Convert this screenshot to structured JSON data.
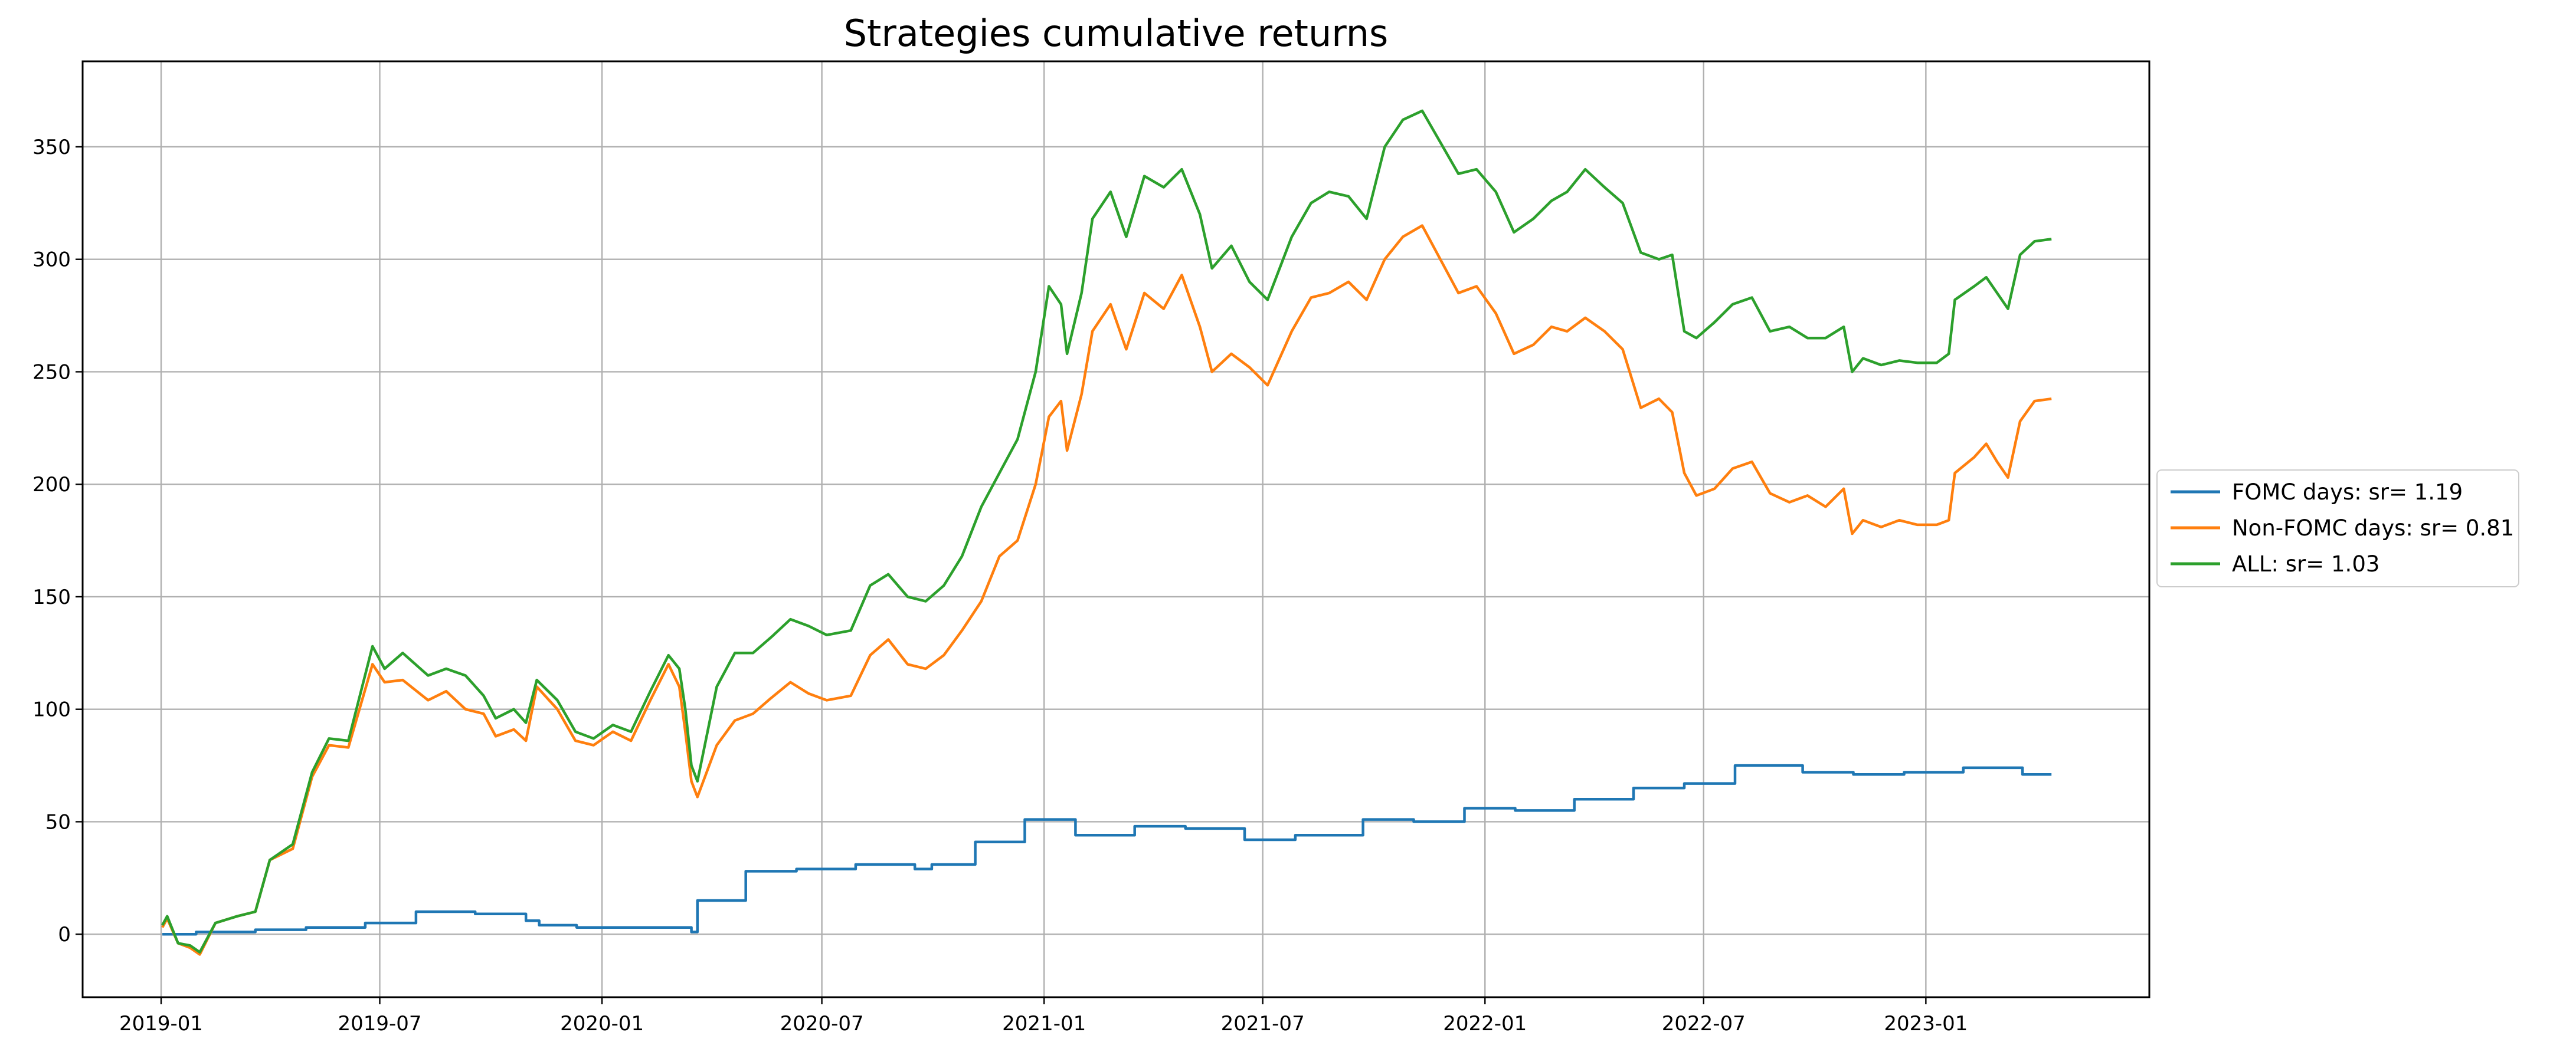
{
  "chart_data": {
    "type": "line",
    "title": "Strategies cumulative returns",
    "xlabel": "",
    "ylabel": "",
    "x_range": [
      "2018-10-28",
      "2023-07-05"
    ],
    "ylim": [
      -28,
      388
    ],
    "xticks": [
      {
        "date": "2019-01-01",
        "label": "2019-01"
      },
      {
        "date": "2019-07-01",
        "label": "2019-07"
      },
      {
        "date": "2020-01-01",
        "label": "2020-01"
      },
      {
        "date": "2020-07-01",
        "label": "2020-07"
      },
      {
        "date": "2021-01-01",
        "label": "2021-01"
      },
      {
        "date": "2021-07-01",
        "label": "2021-07"
      },
      {
        "date": "2022-01-01",
        "label": "2022-01"
      },
      {
        "date": "2022-07-01",
        "label": "2022-07"
      },
      {
        "date": "2023-01-01",
        "label": "2023-01"
      }
    ],
    "yticks": [
      0,
      50,
      100,
      150,
      200,
      250,
      300,
      350
    ],
    "grid": true,
    "legend_position": "outside-right",
    "series": [
      {
        "name": "FOMC days: sr= 1.19",
        "color": "#1f77b4",
        "step": true,
        "points": [
          [
            "2019-01-02",
            0
          ],
          [
            "2019-01-30",
            1
          ],
          [
            "2019-03-20",
            2
          ],
          [
            "2019-05-01",
            3
          ],
          [
            "2019-06-19",
            5
          ],
          [
            "2019-07-31",
            10
          ],
          [
            "2019-09-18",
            9
          ],
          [
            "2019-10-30",
            6
          ],
          [
            "2019-11-10",
            4
          ],
          [
            "2019-12-11",
            3
          ],
          [
            "2020-01-29",
            3
          ],
          [
            "2020-03-03",
            3
          ],
          [
            "2020-03-15",
            1
          ],
          [
            "2020-03-20",
            15
          ],
          [
            "2020-04-29",
            28
          ],
          [
            "2020-06-10",
            29
          ],
          [
            "2020-07-29",
            31
          ],
          [
            "2020-09-16",
            29
          ],
          [
            "2020-09-30",
            31
          ],
          [
            "2020-11-05",
            41
          ],
          [
            "2020-12-16",
            51
          ],
          [
            "2021-01-27",
            44
          ],
          [
            "2021-03-17",
            48
          ],
          [
            "2021-04-28",
            47
          ],
          [
            "2021-06-16",
            42
          ],
          [
            "2021-07-28",
            44
          ],
          [
            "2021-09-22",
            51
          ],
          [
            "2021-11-03",
            50
          ],
          [
            "2021-12-15",
            56
          ],
          [
            "2022-01-26",
            55
          ],
          [
            "2022-03-16",
            60
          ],
          [
            "2022-05-04",
            65
          ],
          [
            "2022-06-15",
            67
          ],
          [
            "2022-07-27",
            75
          ],
          [
            "2022-09-21",
            72
          ],
          [
            "2022-11-02",
            71
          ],
          [
            "2022-12-14",
            72
          ],
          [
            "2023-02-01",
            74
          ],
          [
            "2023-03-22",
            71
          ],
          [
            "2023-04-15",
            71
          ]
        ]
      },
      {
        "name": "Non-FOMC days: sr= 0.81",
        "color": "#ff7f0e",
        "points": [
          [
            "2019-01-02",
            3
          ],
          [
            "2019-01-06",
            7
          ],
          [
            "2019-01-15",
            -4
          ],
          [
            "2019-01-25",
            -6
          ],
          [
            "2019-02-02",
            -9
          ],
          [
            "2019-02-15",
            5
          ],
          [
            "2019-03-05",
            8
          ],
          [
            "2019-03-20",
            10
          ],
          [
            "2019-04-01",
            33
          ],
          [
            "2019-04-20",
            38
          ],
          [
            "2019-05-06",
            70
          ],
          [
            "2019-05-20",
            84
          ],
          [
            "2019-06-05",
            83
          ],
          [
            "2019-06-25",
            120
          ],
          [
            "2019-07-05",
            112
          ],
          [
            "2019-07-20",
            113
          ],
          [
            "2019-08-10",
            104
          ],
          [
            "2019-08-25",
            108
          ],
          [
            "2019-09-10",
            100
          ],
          [
            "2019-09-25",
            98
          ],
          [
            "2019-10-05",
            88
          ],
          [
            "2019-10-20",
            91
          ],
          [
            "2019-10-30",
            86
          ],
          [
            "2019-11-08",
            110
          ],
          [
            "2019-11-25",
            100
          ],
          [
            "2019-12-10",
            86
          ],
          [
            "2019-12-25",
            84
          ],
          [
            "2020-01-10",
            90
          ],
          [
            "2020-01-25",
            86
          ],
          [
            "2020-02-10",
            104
          ],
          [
            "2020-02-25",
            120
          ],
          [
            "2020-03-05",
            110
          ],
          [
            "2020-03-10",
            90
          ],
          [
            "2020-03-15",
            68
          ],
          [
            "2020-03-20",
            61
          ],
          [
            "2020-04-05",
            84
          ],
          [
            "2020-04-20",
            95
          ],
          [
            "2020-05-05",
            98
          ],
          [
            "2020-05-20",
            105
          ],
          [
            "2020-06-05",
            112
          ],
          [
            "2020-06-20",
            107
          ],
          [
            "2020-07-05",
            104
          ],
          [
            "2020-07-25",
            106
          ],
          [
            "2020-08-10",
            124
          ],
          [
            "2020-08-25",
            131
          ],
          [
            "2020-09-10",
            120
          ],
          [
            "2020-09-25",
            118
          ],
          [
            "2020-10-10",
            124
          ],
          [
            "2020-10-25",
            135
          ],
          [
            "2020-11-10",
            148
          ],
          [
            "2020-11-25",
            168
          ],
          [
            "2020-12-10",
            175
          ],
          [
            "2020-12-25",
            200
          ],
          [
            "2021-01-05",
            230
          ],
          [
            "2021-01-15",
            237
          ],
          [
            "2021-01-20",
            215
          ],
          [
            "2021-02-01",
            240
          ],
          [
            "2021-02-10",
            268
          ],
          [
            "2021-02-25",
            280
          ],
          [
            "2021-03-10",
            260
          ],
          [
            "2021-03-25",
            285
          ],
          [
            "2021-04-10",
            278
          ],
          [
            "2021-04-25",
            293
          ],
          [
            "2021-05-10",
            270
          ],
          [
            "2021-05-20",
            250
          ],
          [
            "2021-06-05",
            258
          ],
          [
            "2021-06-20",
            252
          ],
          [
            "2021-07-05",
            244
          ],
          [
            "2021-07-25",
            268
          ],
          [
            "2021-08-10",
            283
          ],
          [
            "2021-08-25",
            285
          ],
          [
            "2021-09-10",
            290
          ],
          [
            "2021-09-25",
            282
          ],
          [
            "2021-10-10",
            300
          ],
          [
            "2021-10-25",
            310
          ],
          [
            "2021-11-10",
            315
          ],
          [
            "2021-11-25",
            300
          ],
          [
            "2021-12-10",
            285
          ],
          [
            "2021-12-25",
            288
          ],
          [
            "2022-01-10",
            276
          ],
          [
            "2022-01-25",
            258
          ],
          [
            "2022-02-10",
            262
          ],
          [
            "2022-02-25",
            270
          ],
          [
            "2022-03-10",
            268
          ],
          [
            "2022-03-25",
            274
          ],
          [
            "2022-04-10",
            268
          ],
          [
            "2022-04-25",
            260
          ],
          [
            "2022-05-10",
            234
          ],
          [
            "2022-05-25",
            238
          ],
          [
            "2022-06-05",
            232
          ],
          [
            "2022-06-15",
            205
          ],
          [
            "2022-06-25",
            195
          ],
          [
            "2022-07-10",
            198
          ],
          [
            "2022-07-25",
            207
          ],
          [
            "2022-08-10",
            210
          ],
          [
            "2022-08-25",
            196
          ],
          [
            "2022-09-10",
            192
          ],
          [
            "2022-09-25",
            195
          ],
          [
            "2022-10-10",
            190
          ],
          [
            "2022-10-25",
            198
          ],
          [
            "2022-11-01",
            178
          ],
          [
            "2022-11-10",
            184
          ],
          [
            "2022-11-25",
            181
          ],
          [
            "2022-12-10",
            184
          ],
          [
            "2022-12-25",
            182
          ],
          [
            "2023-01-10",
            182
          ],
          [
            "2023-01-20",
            184
          ],
          [
            "2023-01-25",
            205
          ],
          [
            "2023-02-10",
            212
          ],
          [
            "2023-02-20",
            218
          ],
          [
            "2023-03-01",
            210
          ],
          [
            "2023-03-10",
            203
          ],
          [
            "2023-03-20",
            228
          ],
          [
            "2023-04-01",
            237
          ],
          [
            "2023-04-15",
            238
          ]
        ]
      },
      {
        "name": "ALL: sr= 1.03",
        "color": "#2ca02c",
        "points": [
          [
            "2019-01-02",
            4
          ],
          [
            "2019-01-06",
            8
          ],
          [
            "2019-01-15",
            -4
          ],
          [
            "2019-01-25",
            -5
          ],
          [
            "2019-02-02",
            -8
          ],
          [
            "2019-02-15",
            5
          ],
          [
            "2019-03-05",
            8
          ],
          [
            "2019-03-20",
            10
          ],
          [
            "2019-04-01",
            33
          ],
          [
            "2019-04-20",
            40
          ],
          [
            "2019-05-06",
            72
          ],
          [
            "2019-05-20",
            87
          ],
          [
            "2019-06-05",
            86
          ],
          [
            "2019-06-25",
            128
          ],
          [
            "2019-07-05",
            118
          ],
          [
            "2019-07-20",
            125
          ],
          [
            "2019-08-10",
            115
          ],
          [
            "2019-08-25",
            118
          ],
          [
            "2019-09-10",
            115
          ],
          [
            "2019-09-25",
            106
          ],
          [
            "2019-10-05",
            96
          ],
          [
            "2019-10-20",
            100
          ],
          [
            "2019-10-30",
            94
          ],
          [
            "2019-11-08",
            113
          ],
          [
            "2019-11-25",
            104
          ],
          [
            "2019-12-10",
            90
          ],
          [
            "2019-12-25",
            87
          ],
          [
            "2020-01-10",
            93
          ],
          [
            "2020-01-25",
            90
          ],
          [
            "2020-02-10",
            108
          ],
          [
            "2020-02-25",
            124
          ],
          [
            "2020-03-05",
            118
          ],
          [
            "2020-03-10",
            100
          ],
          [
            "2020-03-15",
            75
          ],
          [
            "2020-03-20",
            68
          ],
          [
            "2020-04-05",
            110
          ],
          [
            "2020-04-20",
            125
          ],
          [
            "2020-05-05",
            125
          ],
          [
            "2020-05-20",
            132
          ],
          [
            "2020-06-05",
            140
          ],
          [
            "2020-06-20",
            137
          ],
          [
            "2020-07-05",
            133
          ],
          [
            "2020-07-25",
            135
          ],
          [
            "2020-08-10",
            155
          ],
          [
            "2020-08-25",
            160
          ],
          [
            "2020-09-10",
            150
          ],
          [
            "2020-09-25",
            148
          ],
          [
            "2020-10-10",
            155
          ],
          [
            "2020-10-25",
            168
          ],
          [
            "2020-11-10",
            190
          ],
          [
            "2020-11-25",
            205
          ],
          [
            "2020-12-10",
            220
          ],
          [
            "2020-12-25",
            250
          ],
          [
            "2021-01-05",
            288
          ],
          [
            "2021-01-15",
            280
          ],
          [
            "2021-01-20",
            258
          ],
          [
            "2021-02-01",
            285
          ],
          [
            "2021-02-10",
            318
          ],
          [
            "2021-02-25",
            330
          ],
          [
            "2021-03-10",
            310
          ],
          [
            "2021-03-25",
            337
          ],
          [
            "2021-04-10",
            332
          ],
          [
            "2021-04-25",
            340
          ],
          [
            "2021-05-10",
            320
          ],
          [
            "2021-05-20",
            296
          ],
          [
            "2021-06-05",
            306
          ],
          [
            "2021-06-20",
            290
          ],
          [
            "2021-07-05",
            282
          ],
          [
            "2021-07-25",
            310
          ],
          [
            "2021-08-10",
            325
          ],
          [
            "2021-08-25",
            330
          ],
          [
            "2021-09-10",
            328
          ],
          [
            "2021-09-25",
            318
          ],
          [
            "2021-10-10",
            350
          ],
          [
            "2021-10-25",
            362
          ],
          [
            "2021-11-10",
            366
          ],
          [
            "2021-11-25",
            352
          ],
          [
            "2021-12-10",
            338
          ],
          [
            "2021-12-25",
            340
          ],
          [
            "2022-01-10",
            330
          ],
          [
            "2022-01-25",
            312
          ],
          [
            "2022-02-10",
            318
          ],
          [
            "2022-02-25",
            326
          ],
          [
            "2022-03-10",
            330
          ],
          [
            "2022-03-25",
            340
          ],
          [
            "2022-04-10",
            332
          ],
          [
            "2022-04-25",
            325
          ],
          [
            "2022-05-10",
            303
          ],
          [
            "2022-05-25",
            300
          ],
          [
            "2022-06-05",
            302
          ],
          [
            "2022-06-15",
            268
          ],
          [
            "2022-06-25",
            265
          ],
          [
            "2022-07-10",
            272
          ],
          [
            "2022-07-25",
            280
          ],
          [
            "2022-08-10",
            283
          ],
          [
            "2022-08-25",
            268
          ],
          [
            "2022-09-10",
            270
          ],
          [
            "2022-09-25",
            265
          ],
          [
            "2022-10-10",
            265
          ],
          [
            "2022-10-25",
            270
          ],
          [
            "2022-11-01",
            250
          ],
          [
            "2022-11-10",
            256
          ],
          [
            "2022-11-25",
            253
          ],
          [
            "2022-12-10",
            255
          ],
          [
            "2022-12-25",
            254
          ],
          [
            "2023-01-10",
            254
          ],
          [
            "2023-01-20",
            258
          ],
          [
            "2023-01-25",
            282
          ],
          [
            "2023-02-10",
            288
          ],
          [
            "2023-02-20",
            292
          ],
          [
            "2023-03-01",
            285
          ],
          [
            "2023-03-10",
            278
          ],
          [
            "2023-03-20",
            302
          ],
          [
            "2023-04-01",
            308
          ],
          [
            "2023-04-15",
            309
          ]
        ]
      }
    ]
  }
}
